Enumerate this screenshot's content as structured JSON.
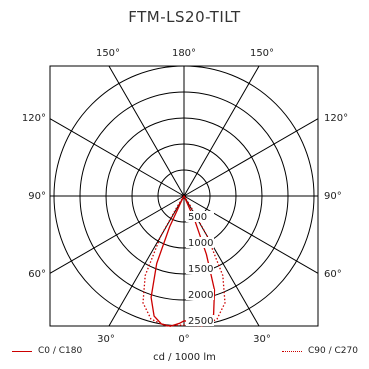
{
  "chart_data": {
    "type": "polar",
    "title": "FTM-LS20-TILT",
    "unit_label": "cd / 1000 lm",
    "radial_ticks": [
      500,
      1000,
      1500,
      2000,
      2500
    ],
    "radial_max": 2500,
    "angle_labels": {
      "top": [
        "150°",
        "180°",
        "150°"
      ],
      "upper_sides": [
        "120°",
        "120°"
      ],
      "middle_sides": [
        "90°",
        "90°"
      ],
      "lower_sides": [
        "60°",
        "60°"
      ],
      "bottom": [
        "30°",
        "0°",
        "30°"
      ]
    },
    "series": [
      {
        "name": "C0 / C180",
        "style": "solid",
        "color": "#cc0000",
        "points": [
          [
            -28,
            0
          ],
          [
            -27,
            120
          ],
          [
            -25,
            650
          ],
          [
            -22,
            1400
          ],
          [
            -18,
            2050
          ],
          [
            -14,
            2380
          ],
          [
            -10,
            2500
          ],
          [
            -6,
            2520
          ],
          [
            -2,
            2450
          ],
          [
            0,
            2400
          ],
          [
            3,
            2420
          ],
          [
            6,
            2500
          ],
          [
            10,
            2520
          ],
          [
            14,
            2350
          ],
          [
            18,
            1900
          ],
          [
            21,
            1200
          ],
          [
            24,
            500
          ],
          [
            26,
            0
          ]
        ]
      },
      {
        "name": "C90 / C270",
        "style": "dotted",
        "color": "#cc0000",
        "points": [
          [
            -35,
            0
          ],
          [
            -33,
            200
          ],
          [
            -30,
            900
          ],
          [
            -26,
            1700
          ],
          [
            -21,
            2200
          ],
          [
            -15,
            2450
          ],
          [
            -8,
            2520
          ],
          [
            0,
            2480
          ],
          [
            8,
            2520
          ],
          [
            15,
            2450
          ],
          [
            21,
            2200
          ],
          [
            26,
            1700
          ],
          [
            30,
            900
          ],
          [
            33,
            200
          ],
          [
            35,
            0
          ]
        ]
      }
    ]
  }
}
